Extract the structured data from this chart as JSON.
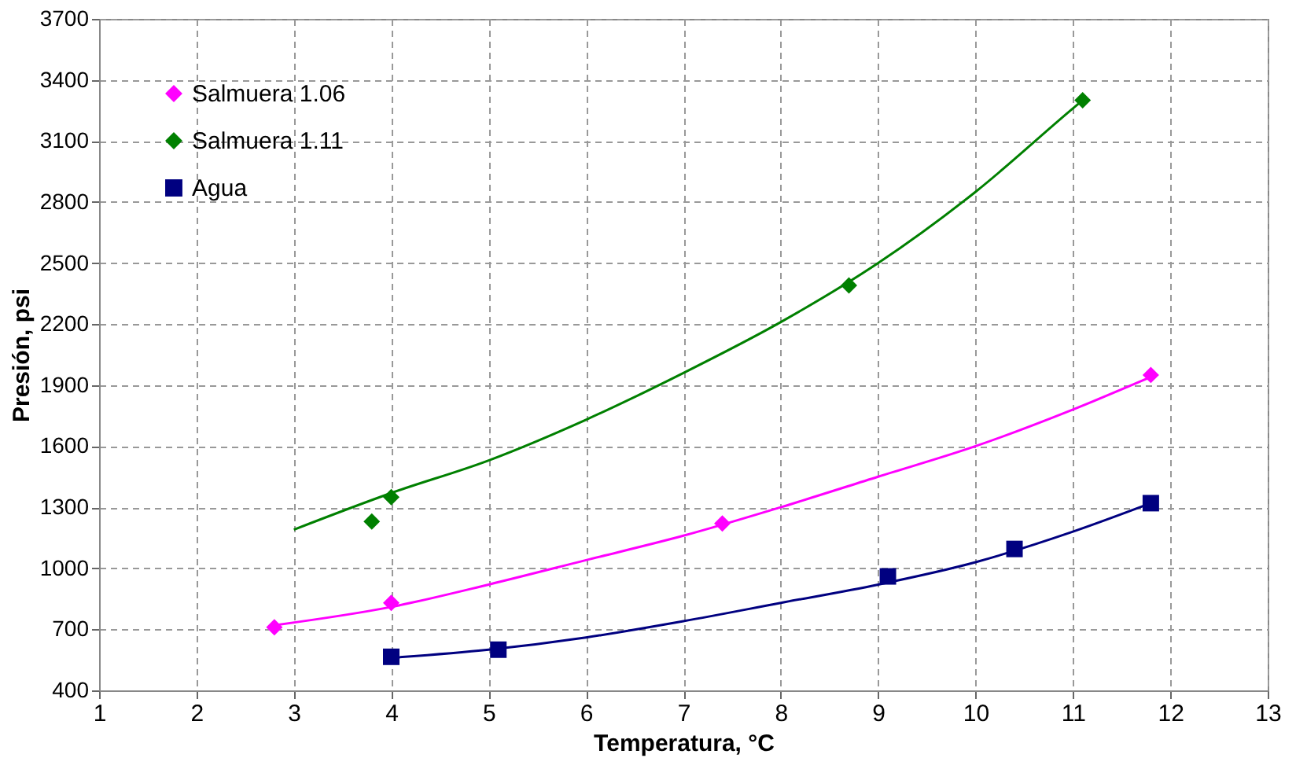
{
  "chart_data": {
    "type": "scatter",
    "xlabel": "Temperatura, °C",
    "ylabel": "Presión, psi",
    "xlim": [
      1,
      13
    ],
    "xticks": [
      1,
      2,
      3,
      4,
      5,
      6,
      7,
      8,
      9,
      10,
      11,
      12,
      13
    ],
    "ylim": [
      400,
      3700
    ],
    "yticks": [
      400,
      700,
      1000,
      1300,
      1600,
      1900,
      2200,
      2500,
      2800,
      3100,
      3400,
      3700
    ],
    "grid": true,
    "legend": "top left",
    "series": [
      {
        "name": "Salmuera 1.06",
        "color": "#ff00ff",
        "marker": "diamond",
        "x": [
          2.8,
          4.0,
          7.4,
          11.8
        ],
        "values": [
          710,
          830,
          1220,
          1950
        ]
      },
      {
        "name": "Salmuera 1.11",
        "color": "#008000",
        "marker": "diamond",
        "x": [
          3.8,
          4.0,
          8.7,
          11.1
        ],
        "values": [
          1230,
          1350,
          2390,
          3300
        ]
      },
      {
        "name": "Agua",
        "color": "#000080",
        "marker": "square",
        "x": [
          4.0,
          5.1,
          9.1,
          10.4,
          11.8
        ],
        "values": [
          565,
          600,
          960,
          1095,
          1320
        ]
      },
      {
        "type": "line",
        "color": "#ff00ff",
        "x": [
          2.8,
          4,
          5,
          6,
          7,
          8,
          9,
          10,
          11,
          11.8
        ],
        "values": [
          720,
          810,
          920,
          1040,
          1160,
          1300,
          1450,
          1600,
          1780,
          1940
        ]
      },
      {
        "type": "line",
        "color": "#008000",
        "x": [
          3,
          4,
          5,
          6,
          7,
          8,
          9,
          10,
          11,
          11.1
        ],
        "values": [
          1190,
          1370,
          1530,
          1730,
          1960,
          2210,
          2500,
          2850,
          3260,
          3300
        ]
      },
      {
        "type": "line",
        "color": "#000080",
        "x": [
          4,
          5,
          6,
          7,
          8,
          9,
          10,
          11,
          11.8
        ],
        "values": [
          560,
          600,
          660,
          740,
          830,
          920,
          1030,
          1180,
          1320
        ]
      }
    ]
  }
}
